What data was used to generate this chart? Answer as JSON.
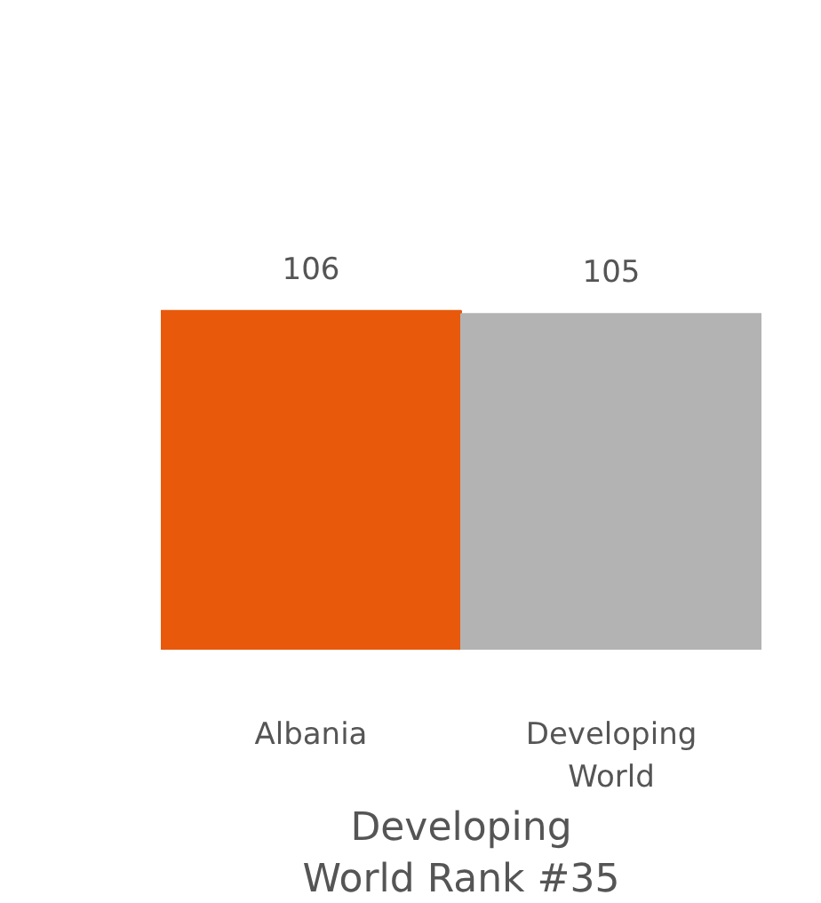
{
  "chart_data": {
    "type": "bar",
    "title": "Developing World Rank #35",
    "categories": [
      "Albania",
      "Developing World"
    ],
    "values": [
      106,
      105
    ],
    "colors": [
      "#e8590c",
      "#b3b3b3"
    ],
    "tick_labels": "x",
    "data_labels": true,
    "grid": false
  }
}
